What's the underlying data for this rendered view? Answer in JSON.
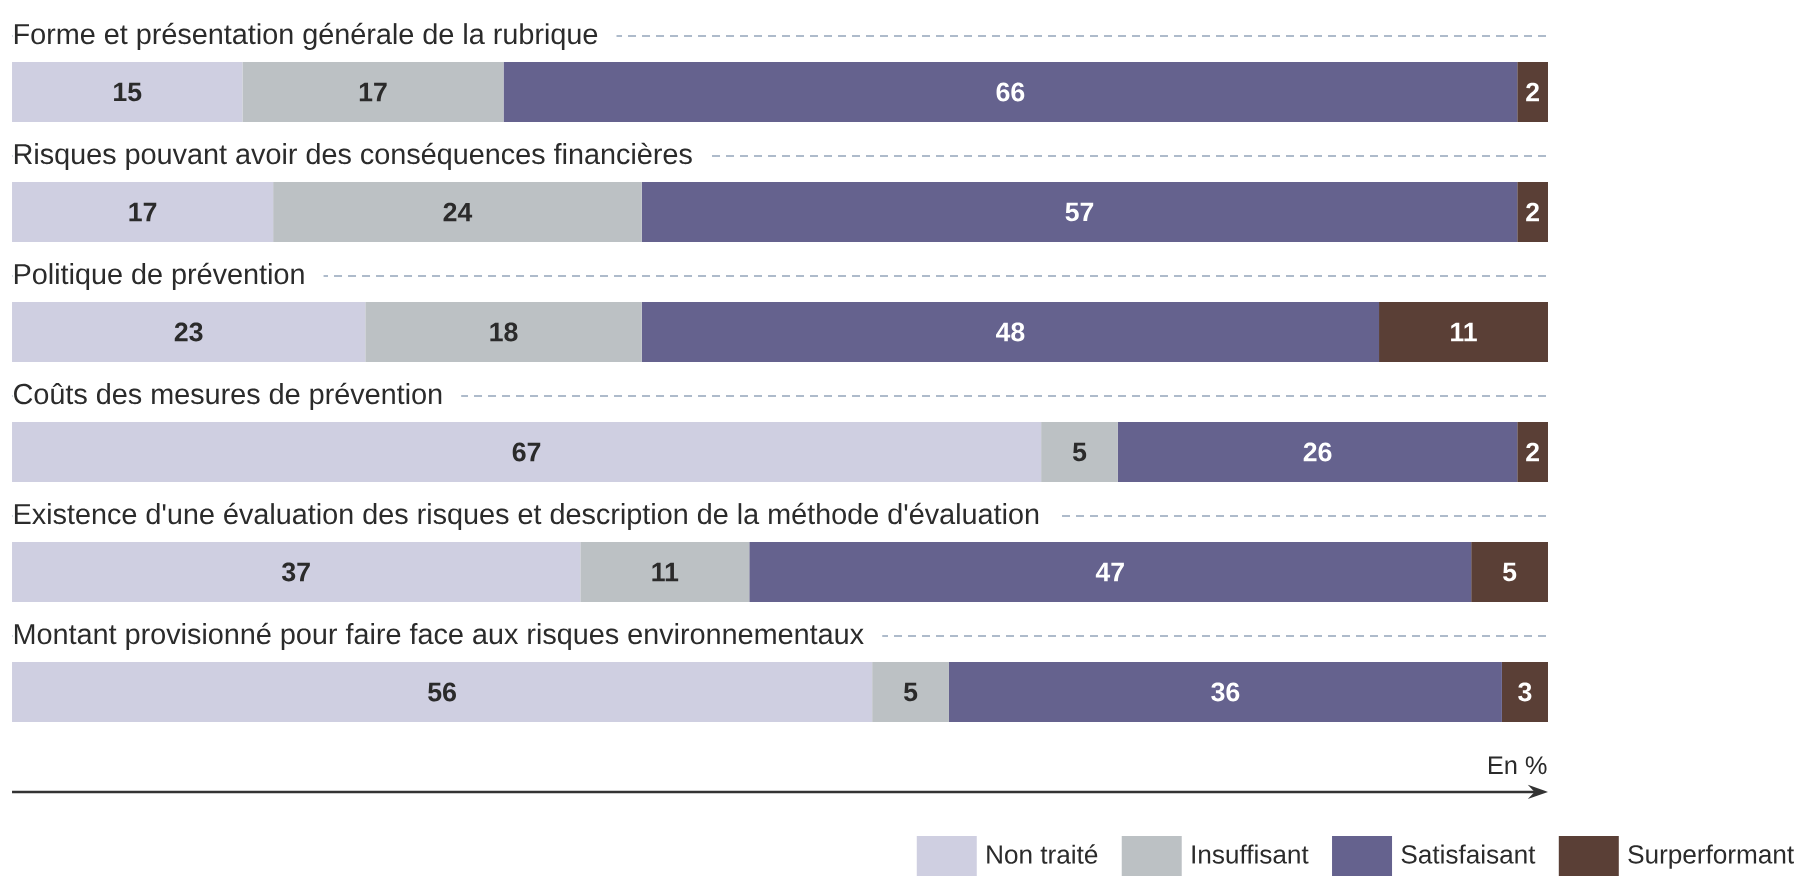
{
  "chart_data": {
    "type": "bar",
    "orientation": "horizontal",
    "stacked": true,
    "categories": [
      "Forme et présentation générale de la rubrique",
      "Risques pouvant avoir des conséquences financières",
      "Politique de prévention",
      "Coûts des mesures de prévention",
      "Existence d'une évaluation des risques et description de la méthode d'évaluation",
      "Montant provisionné pour faire face aux risques environnementaux"
    ],
    "series": [
      {
        "name": "Non traité",
        "color": "#cfcfe1",
        "values": [
          15,
          17,
          23,
          67,
          37,
          56
        ]
      },
      {
        "name": "Insuffisant",
        "color": "#bcc1c4",
        "values": [
          17,
          24,
          18,
          5,
          11,
          5
        ]
      },
      {
        "name": "Satisfaisant",
        "color": "#65628e",
        "values": [
          66,
          57,
          48,
          26,
          47,
          36
        ]
      },
      {
        "name": "Surperformant",
        "color": "#5a3f36",
        "values": [
          2,
          2,
          11,
          2,
          5,
          3
        ]
      }
    ],
    "xlabel": "En %",
    "data_labels": true,
    "legend": "bottom right",
    "tick_labels": "y",
    "grid": "y"
  }
}
